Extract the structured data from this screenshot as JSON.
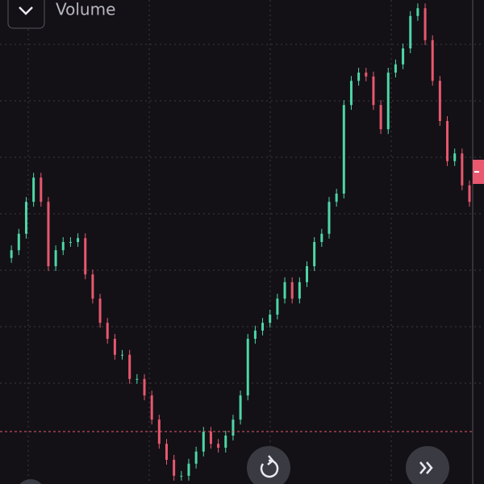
{
  "toolbar": {
    "label": "Volume"
  },
  "chart_data": {
    "type": "candlestick",
    "up_color": "#4fd6a6",
    "down_color": "#e8586f",
    "ylim": [
      0,
      100
    ],
    "values": [
      46.7,
      48.3,
      51.7,
      58.3,
      63.3,
      58.3,
      45,
      48.3,
      50,
      50,
      50.8,
      43.3,
      38.3,
      33.3,
      30,
      26.7,
      26.7,
      21.7,
      21.7,
      18.3,
      13.3,
      8.3,
      5,
      1.7,
      1.7,
      4.2,
      6.7,
      10.8,
      8.3,
      7.5,
      10,
      13.3,
      18.3,
      30,
      31.7,
      33.3,
      35,
      38.3,
      41.7,
      38.3,
      41.7,
      45,
      50,
      51.7,
      58.3,
      60,
      78.3,
      83.3,
      85,
      84.2,
      78.3,
      73.3,
      85,
      86.7,
      90,
      96.7,
      98.3,
      91.7,
      83.3,
      75,
      66.7,
      68.3,
      61.7,
      58.3
    ]
  }
}
